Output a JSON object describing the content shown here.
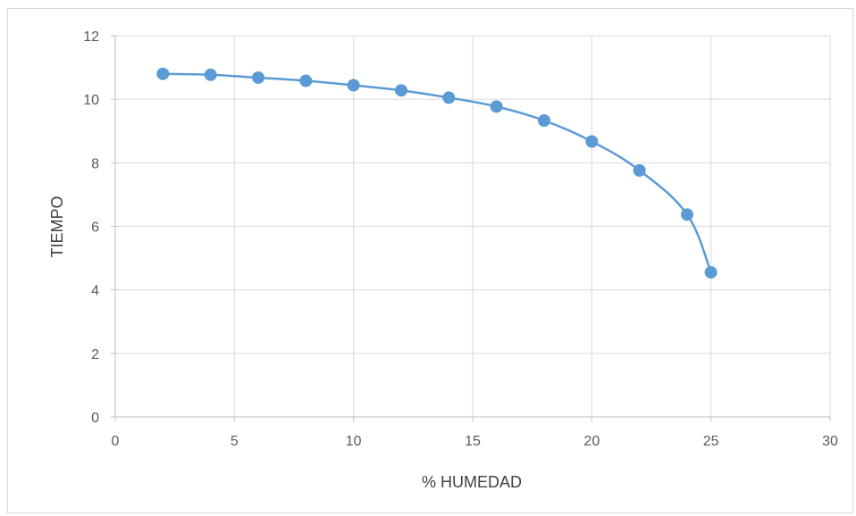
{
  "chart_data": {
    "type": "scatter",
    "xlabel": "% HUMEDAD",
    "ylabel": "TIEMPO",
    "xlim": [
      0,
      30
    ],
    "ylim": [
      0,
      12
    ],
    "xticks": [
      0,
      5,
      10,
      15,
      20,
      25,
      30
    ],
    "yticks": [
      0,
      2,
      4,
      6,
      8,
      10,
      12
    ],
    "grid": true,
    "smooth_line": true,
    "legend": "none",
    "series": [
      {
        "x": [
          2,
          4,
          6,
          8,
          10,
          12,
          14,
          16,
          18,
          20,
          22,
          24,
          25
        ],
        "y": [
          10.8,
          10.77,
          10.68,
          10.58,
          10.44,
          10.28,
          10.05,
          9.77,
          9.33,
          8.67,
          7.76,
          6.37,
          4.55
        ]
      }
    ]
  },
  "colors": {
    "series": "#5b9bd5",
    "grid": "#d9d9d9",
    "axis": "#bfbfbf",
    "tick_text": "#595959",
    "title_text": "#404040"
  }
}
